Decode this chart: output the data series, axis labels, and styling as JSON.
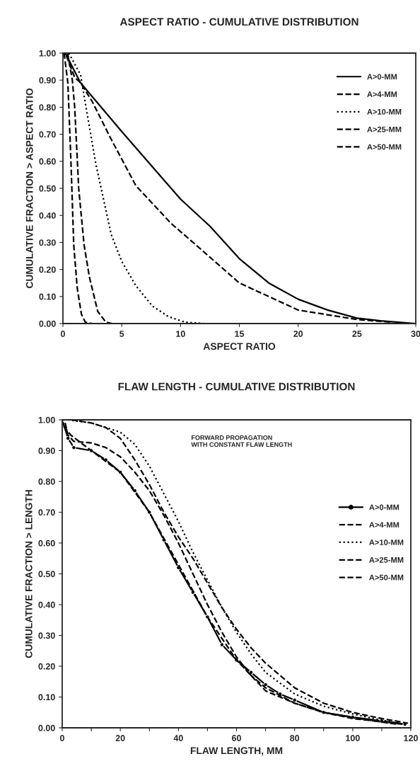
{
  "chart_data": [
    {
      "type": "line",
      "title": "ASPECT RATIO - CUMULATIVE DISTRIBUTION",
      "xlabel": "ASPECT RATIO",
      "ylabel": "CUMULATIVE FRACTION > ASPECT RATIO",
      "xlim": [
        0,
        30
      ],
      "ylim": [
        0,
        1
      ],
      "xticks": [
        0,
        5,
        10,
        15,
        20,
        25,
        30
      ],
      "yticks": [
        {
          "value": 0,
          "label": "0.00"
        },
        {
          "value": 0.1,
          "label": "0.10"
        },
        {
          "value": 0.2,
          "label": "0.20"
        },
        {
          "value": 0.3,
          "label": "0.30"
        },
        {
          "value": 0.4,
          "label": "0.40"
        },
        {
          "value": 0.5,
          "label": "0.50"
        },
        {
          "value": 0.6,
          "label": "0.60"
        },
        {
          "value": 0.7,
          "label": "0.70"
        },
        {
          "value": 0.8,
          "label": "0.80"
        },
        {
          "value": 0.9,
          "label": "0.90"
        },
        {
          "value": 1,
          "label": "1.00"
        }
      ],
      "grid": false,
      "legend": "top right",
      "series": [
        {
          "name": "A>0-MM",
          "color": "#000000",
          "line_style": "solid",
          "x": [
            0.2,
            1.5,
            5,
            10,
            12.5,
            15,
            17.5,
            20,
            22.5,
            25,
            27,
            30
          ],
          "values": [
            1,
            0.89,
            0.71,
            0.46,
            0.36,
            0.24,
            0.15,
            0.09,
            0.05,
            0.02,
            0.01,
            0
          ]
        },
        {
          "name": "A>4-MM",
          "color": "#000000",
          "line_style": "dashed",
          "x": [
            0.3,
            1,
            1.5,
            2.5,
            4,
            6.2,
            9.2,
            10.8,
            15,
            20,
            25,
            28
          ],
          "values": [
            0.99,
            0.91,
            0.89,
            0.82,
            0.69,
            0.51,
            0.37,
            0.31,
            0.15,
            0.05,
            0.015,
            0.005
          ]
        },
        {
          "name": "A>10-MM",
          "color": "#000000",
          "line_style": "dotted",
          "x": [
            0.5,
            1.5,
            2,
            2.8,
            3.4,
            4.1,
            5,
            6.2,
            7.6,
            9,
            10.4,
            12
          ],
          "values": [
            1,
            0.92,
            0.79,
            0.59,
            0.47,
            0.33,
            0.23,
            0.14,
            0.065,
            0.025,
            0.005,
            0
          ]
        },
        {
          "name": "A>25-MM",
          "color": "#000000",
          "line_style": "dashed",
          "x": [
            0.4,
            0.8,
            1.0,
            1.34,
            1.8,
            2.26,
            2.96,
            3.65,
            4.2
          ],
          "values": [
            1,
            0.9,
            0.8,
            0.5,
            0.29,
            0.17,
            0.045,
            0.005,
            0
          ]
        },
        {
          "name": "A>50-MM",
          "color": "#000000",
          "line_style": "dashed",
          "x": [
            0.1,
            0.42,
            0.69,
            0.92,
            1.22,
            1.57,
            1.9,
            2.5
          ],
          "values": [
            1,
            0.89,
            0.59,
            0.29,
            0.13,
            0.035,
            0.005,
            0
          ]
        }
      ]
    },
    {
      "type": "line",
      "title": "FLAW LENGTH - CUMULATIVE DISTRIBUTION",
      "xlabel": "FLAW LENGTH, MM",
      "ylabel": "CUMULATIVE FRACTION > LENGTH",
      "xlim": [
        0,
        120
      ],
      "ylim": [
        0,
        1
      ],
      "xticks": [
        0,
        {
          "value": 10,
          "label": null
        },
        20,
        {
          "value": 30,
          "label": null
        },
        40,
        {
          "value": 50,
          "label": null
        },
        60,
        {
          "value": 70,
          "label": null
        },
        80,
        {
          "value": 90,
          "label": null
        },
        100,
        {
          "value": 110,
          "label": null
        },
        120
      ],
      "yticks": [
        {
          "value": 0,
          "label": "0.00"
        },
        {
          "value": 0.1,
          "label": "0.10"
        },
        {
          "value": 0.2,
          "label": "0.20"
        },
        {
          "value": 0.3,
          "label": "0.30"
        },
        {
          "value": 0.4,
          "label": "0.40"
        },
        {
          "value": 0.5,
          "label": "0.50"
        },
        {
          "value": 0.6,
          "label": "0.60"
        },
        {
          "value": 0.7,
          "label": "0.70"
        },
        {
          "value": 0.8,
          "label": "0.80"
        },
        {
          "value": 0.9,
          "label": "0.90"
        },
        {
          "value": 1,
          "label": "1.00"
        }
      ],
      "grid": false,
      "legend": "right",
      "annotations": [
        "FORWARD PROPAGATION\nWITH CONSTANT FLAW LENGTH"
      ],
      "series": [
        {
          "name": "A>0-MM",
          "color": "#000000",
          "line_style": "solid",
          "marker": "circle",
          "x": [
            0,
            2,
            4,
            10,
            15,
            20,
            25,
            30,
            35,
            40,
            45,
            50,
            55,
            60,
            65,
            70,
            75,
            80,
            90,
            100,
            110,
            118
          ],
          "values": [
            1,
            0.94,
            0.91,
            0.9,
            0.87,
            0.83,
            0.77,
            0.7,
            0.61,
            0.52,
            0.44,
            0.36,
            0.27,
            0.22,
            0.18,
            0.14,
            0.11,
            0.09,
            0.05,
            0.035,
            0.022,
            0.012
          ]
        },
        {
          "name": "A>4-MM",
          "color": "#000000",
          "line_style": "dashed",
          "x": [
            1,
            2,
            4,
            10,
            15,
            20,
            25,
            30,
            35,
            40,
            45,
            50,
            55,
            60,
            65,
            70,
            80,
            90,
            100,
            110,
            117
          ],
          "values": [
            0.99,
            0.95,
            0.93,
            0.925,
            0.91,
            0.88,
            0.83,
            0.77,
            0.69,
            0.6,
            0.5,
            0.4,
            0.31,
            0.23,
            0.17,
            0.13,
            0.08,
            0.05,
            0.03,
            0.02,
            0.012
          ]
        },
        {
          "name": "A>10-MM",
          "color": "#000000",
          "line_style": "dotted",
          "x": [
            2,
            10,
            20,
            25,
            30,
            35,
            40,
            45,
            50,
            55,
            60,
            65,
            70,
            80,
            90,
            100,
            110,
            116
          ],
          "values": [
            1,
            0.99,
            0.96,
            0.92,
            0.85,
            0.76,
            0.67,
            0.57,
            0.48,
            0.39,
            0.31,
            0.24,
            0.18,
            0.11,
            0.07,
            0.045,
            0.025,
            0.015
          ]
        },
        {
          "name": "A>25-MM",
          "color": "#000000",
          "line_style": "dashed",
          "x": [
            3,
            10,
            15,
            20,
            25,
            30,
            35,
            40,
            45,
            50,
            55,
            60,
            65,
            70,
            80,
            90,
            100,
            110,
            119
          ],
          "values": [
            1,
            0.99,
            0.975,
            0.94,
            0.87,
            0.79,
            0.7,
            0.62,
            0.55,
            0.47,
            0.39,
            0.32,
            0.26,
            0.21,
            0.13,
            0.08,
            0.05,
            0.03,
            0.015
          ]
        },
        {
          "name": "A>50-MM",
          "color": "#000000",
          "line_style": "dashed",
          "x": [
            0.5,
            3,
            10,
            20,
            30,
            40,
            50,
            60,
            70,
            80,
            90,
            100,
            115
          ],
          "values": [
            0.98,
            0.95,
            0.9,
            0.83,
            0.7,
            0.53,
            0.36,
            0.22,
            0.12,
            0.08,
            0.05,
            0.033,
            0.012
          ]
        }
      ]
    }
  ]
}
